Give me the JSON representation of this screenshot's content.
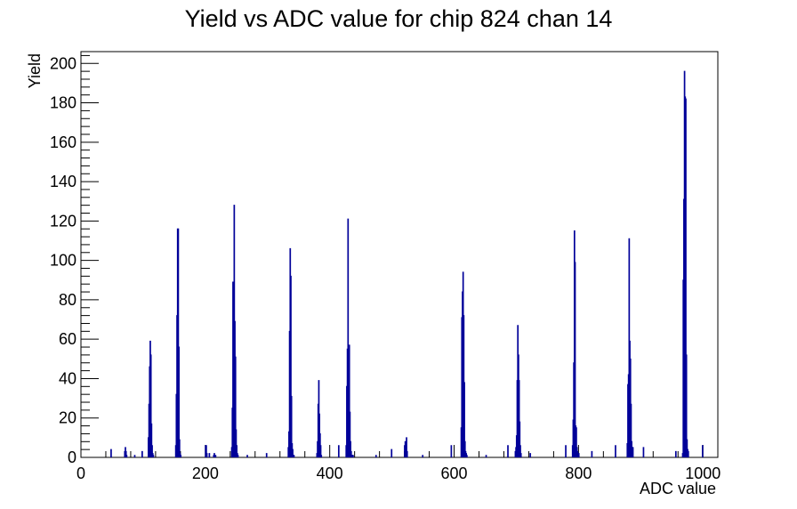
{
  "chart_data": {
    "type": "bar",
    "title": "Yield vs ADC value for chip 824 chan 14",
    "xlabel": "ADC value",
    "ylabel": "Yield",
    "xlim": [
      0,
      1024
    ],
    "ylim": [
      0,
      206
    ],
    "x_ticks": [
      0,
      200,
      400,
      600,
      800,
      1000
    ],
    "y_ticks": [
      0,
      20,
      40,
      60,
      80,
      100,
      120,
      140,
      160,
      180,
      200
    ],
    "grid": false,
    "legend": "none",
    "bin_width": 1,
    "line_color": "#000099",
    "series": [
      {
        "x": [
          48,
          70,
          71,
          72,
          73,
          86,
          98,
          108,
          109,
          110,
          111,
          112,
          113,
          114,
          115,
          116,
          152,
          153,
          154,
          155,
          156,
          157,
          158,
          159,
          160,
          200,
          201,
          202,
          206,
          213,
          214,
          216,
          242,
          243,
          244,
          245,
          246,
          247,
          248,
          249,
          250,
          251,
          252,
          267,
          298,
          333,
          334,
          335,
          336,
          337,
          338,
          339,
          340,
          341,
          342,
          379,
          380,
          381,
          382,
          383,
          384,
          385,
          386,
          414,
          426,
          427,
          428,
          429,
          430,
          431,
          432,
          433,
          434,
          435,
          436,
          437,
          474,
          499,
          520,
          521,
          522,
          523,
          524,
          549,
          595,
          611,
          612,
          613,
          614,
          615,
          616,
          617,
          618,
          619,
          620,
          651,
          686,
          698,
          699,
          700,
          701,
          702,
          703,
          704,
          705,
          706,
          707,
          722,
          779,
          790,
          791,
          792,
          793,
          794,
          795,
          796,
          797,
          798,
          799,
          800,
          821,
          859,
          878,
          879,
          880,
          881,
          882,
          883,
          884,
          885,
          886,
          887,
          904,
          956,
          967,
          968,
          969,
          970,
          971,
          972,
          973,
          974,
          975,
          976,
          999
        ],
        "y": [
          4,
          3,
          5,
          3,
          1,
          1,
          3,
          10,
          27,
          46,
          59,
          52,
          17,
          6,
          2,
          1,
          6,
          32,
          72,
          116,
          116,
          56,
          9,
          2,
          1,
          6,
          6,
          2,
          2,
          1,
          2,
          1,
          5,
          25,
          89,
          89,
          128,
          69,
          51,
          14,
          6,
          2,
          1,
          1,
          2,
          5,
          13,
          64,
          106,
          92,
          31,
          7,
          4,
          1,
          1,
          2,
          8,
          27,
          39,
          22,
          12,
          6,
          1,
          6,
          6,
          36,
          55,
          121,
          50,
          57,
          23,
          8,
          3,
          1,
          1,
          1,
          1,
          4,
          6,
          8,
          4,
          10,
          3,
          1,
          6,
          15,
          71,
          84,
          94,
          72,
          38,
          8,
          3,
          2,
          1,
          1,
          6,
          3,
          5,
          11,
          39,
          67,
          52,
          39,
          18,
          6,
          2,
          2,
          6,
          6,
          19,
          48,
          115,
          99,
          16,
          15,
          5,
          3,
          1,
          2,
          3,
          6,
          7,
          37,
          42,
          111,
          59,
          50,
          27,
          8,
          5,
          5,
          5,
          3,
          2,
          90,
          131,
          196,
          183,
          182,
          52,
          9,
          4,
          3,
          6
        ]
      }
    ]
  }
}
